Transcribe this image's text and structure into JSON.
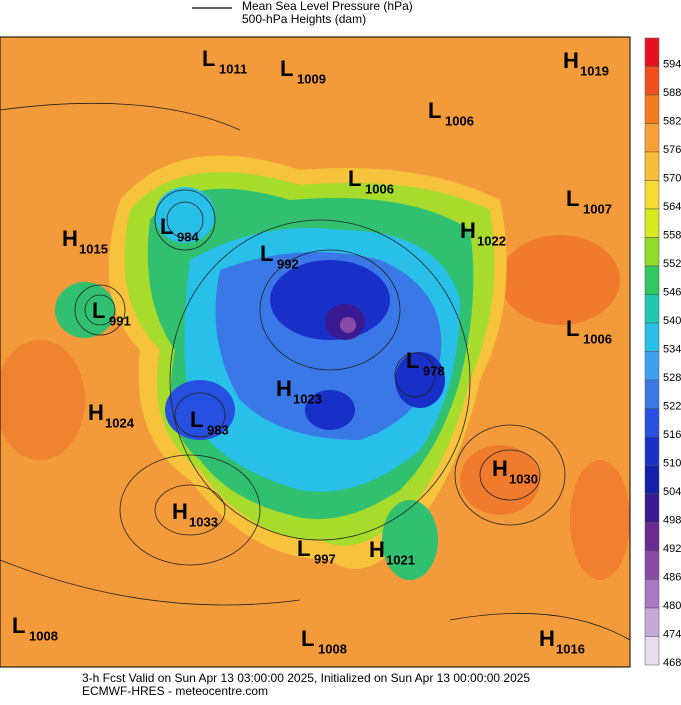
{
  "legend": [
    "Mean Sea Level Pressure (hPa)",
    "500-hPa Heights (dam)"
  ],
  "centers": [
    {
      "kind": "L",
      "value": 1011
    },
    {
      "kind": "L",
      "value": 1009
    },
    {
      "kind": "H",
      "value": 1019
    },
    {
      "kind": "L",
      "value": 1006
    },
    {
      "kind": "L",
      "value": 1006
    },
    {
      "kind": "L",
      "value": 1007
    },
    {
      "kind": "H",
      "value": 1015
    },
    {
      "kind": "L",
      "value": 984
    },
    {
      "kind": "H",
      "value": 1022
    },
    {
      "kind": "L",
      "value": 992
    },
    {
      "kind": "L",
      "value": 991
    },
    {
      "kind": "L",
      "value": 1006
    },
    {
      "kind": "L",
      "value": 978
    },
    {
      "kind": "H",
      "value": 1024
    },
    {
      "kind": "H",
      "value": 1023
    },
    {
      "kind": "L",
      "value": 983
    },
    {
      "kind": "H",
      "value": 1030
    },
    {
      "kind": "H",
      "value": 1033
    },
    {
      "kind": "L",
      "value": 997
    },
    {
      "kind": "H",
      "value": 1021
    },
    {
      "kind": "L",
      "value": 1008
    },
    {
      "kind": "L",
      "value": 1008
    },
    {
      "kind": "H",
      "value": 1016
    }
  ],
  "colorbar": {
    "ticks": [
      594,
      588,
      582,
      576,
      570,
      564,
      558,
      552,
      546,
      540,
      534,
      528,
      522,
      516,
      510,
      504,
      498,
      492,
      486,
      480,
      474,
      468
    ],
    "colors": [
      "#e8101c",
      "#f0501c",
      "#f57a22",
      "#f7a033",
      "#f8be3a",
      "#f5dc2e",
      "#d6ea1e",
      "#8fdc2a",
      "#30c860",
      "#20c8b0",
      "#28c0e8",
      "#40a0f0",
      "#3a78e8",
      "#2850e0",
      "#1830c8",
      "#1020a8",
      "#3a1a90",
      "#6a2a90",
      "#8a4aa8",
      "#a878c0",
      "#c8a8d8",
      "#e8dcf0"
    ]
  },
  "footer": [
    "3-h Fcst Valid on Sun Apr 13 03:00:00 2025, Initialized on Sun Apr 13 00:00:00 2025",
    "ECMWF-HRES - meteocentre.com"
  ]
}
